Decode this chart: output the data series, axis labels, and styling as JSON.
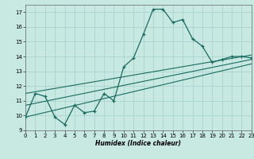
{
  "xlabel": "Humidex (Indice chaleur)",
  "bg_color": "#c8e8e2",
  "grid_color": "#a8d4cc",
  "line_color": "#1a6b60",
  "xlim": [
    0,
    23
  ],
  "ylim": [
    9,
    17.5
  ],
  "yticks": [
    9,
    10,
    11,
    12,
    13,
    14,
    15,
    16,
    17
  ],
  "xticks": [
    0,
    1,
    2,
    3,
    4,
    5,
    6,
    7,
    8,
    9,
    10,
    11,
    12,
    13,
    14,
    15,
    16,
    17,
    18,
    19,
    20,
    21,
    22,
    23
  ],
  "main_x": [
    0,
    1,
    2,
    3,
    4,
    5,
    6,
    7,
    8,
    9,
    10,
    11,
    12,
    13,
    14,
    15,
    16,
    17,
    18,
    19,
    20,
    21,
    22,
    23
  ],
  "main_y": [
    9.9,
    11.5,
    11.3,
    9.9,
    9.4,
    10.7,
    10.2,
    10.3,
    11.5,
    11.0,
    13.3,
    13.9,
    15.5,
    17.2,
    17.2,
    16.3,
    16.5,
    15.2,
    14.7,
    13.6,
    13.8,
    14.0,
    14.0,
    13.9
  ],
  "reg_lower": {
    "x": [
      0,
      23
    ],
    "y": [
      9.9,
      13.5
    ]
  },
  "reg_upper": {
    "x": [
      0,
      23
    ],
    "y": [
      11.5,
      14.1
    ]
  },
  "reg_mid": {
    "x": [
      0,
      23
    ],
    "y": [
      10.7,
      13.8
    ]
  },
  "xlabel_fontsize": 5.5,
  "tick_fontsize": 5.0
}
